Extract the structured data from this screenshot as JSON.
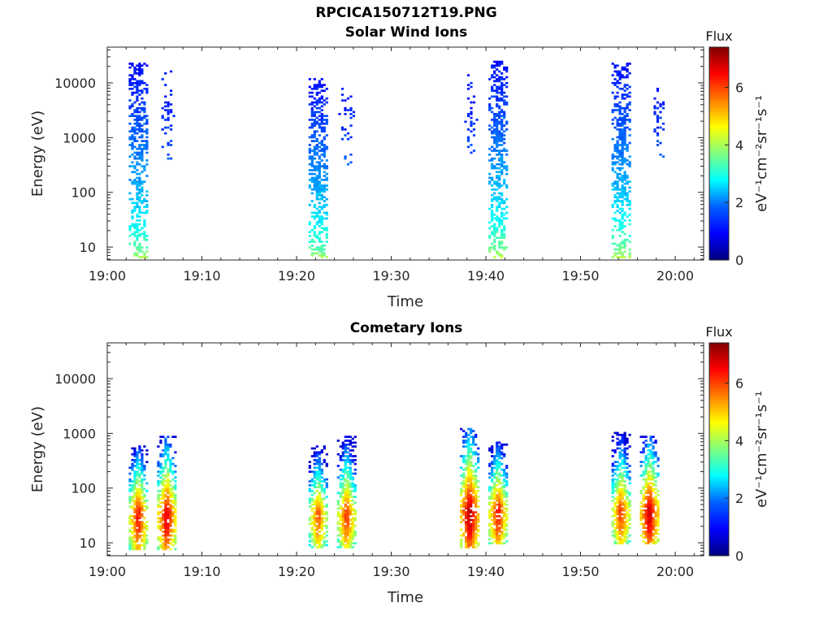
{
  "figure": {
    "title": "RPCICA150712T19.PNG"
  },
  "chart_data": [
    {
      "type": "heatmap",
      "title": "Solar Wind Ions",
      "xlabel": "Time",
      "ylabel": "Energy (eV)",
      "x_ticks": [
        "19:00",
        "19:10",
        "19:20",
        "19:30",
        "19:40",
        "19:50",
        "20:00"
      ],
      "x_range": [
        "19:00",
        "20:03"
      ],
      "y_scale": "log",
      "y_ticks": [
        10,
        100,
        1000,
        10000
      ],
      "y_range": [
        5.8,
        45000
      ],
      "colorbar": {
        "title": "Flux",
        "label": "eV⁻¹cm⁻²sr⁻¹s⁻¹",
        "ticks": [
          0,
          2,
          4,
          6
        ],
        "range": [
          0,
          7.4
        ],
        "colormap": "jet"
      },
      "bursts": [
        {
          "time": "19:03",
          "e_low": 6,
          "e_high": 22000,
          "flux_low_energy": 4.3,
          "flux_high_energy": 1.0
        },
        {
          "time": "19:06",
          "e_low": 300,
          "e_high": 16000,
          "flux_low_energy": 1.8,
          "flux_high_energy": 1.0
        },
        {
          "time": "19:22",
          "e_low": 6,
          "e_high": 12000,
          "flux_low_energy": 4.3,
          "flux_high_energy": 1.0
        },
        {
          "time": "19:25",
          "e_low": 300,
          "e_high": 10000,
          "flux_low_energy": 1.8,
          "flux_high_energy": 1.0
        },
        {
          "time": "19:38",
          "e_low": 300,
          "e_high": 15000,
          "flux_low_energy": 1.8,
          "flux_high_energy": 1.0
        },
        {
          "time": "19:41",
          "e_low": 6,
          "e_high": 25000,
          "flux_low_energy": 4.5,
          "flux_high_energy": 1.0
        },
        {
          "time": "19:54",
          "e_low": 6,
          "e_high": 23000,
          "flux_low_energy": 4.5,
          "flux_high_energy": 1.0
        },
        {
          "time": "19:58",
          "e_low": 400,
          "e_high": 10000,
          "flux_low_energy": 1.8,
          "flux_high_energy": 1.0
        }
      ]
    },
    {
      "type": "heatmap",
      "title": "Cometary Ions",
      "xlabel": "Time",
      "ylabel": "Energy (eV)",
      "x_ticks": [
        "19:00",
        "19:10",
        "19:20",
        "19:30",
        "19:40",
        "19:50",
        "20:00"
      ],
      "x_range": [
        "19:00",
        "20:03"
      ],
      "y_scale": "log",
      "y_ticks": [
        10,
        100,
        1000,
        10000
      ],
      "y_range": [
        5.8,
        45000
      ],
      "colorbar": {
        "title": "Flux",
        "label": "eV⁻¹cm⁻²sr⁻¹s⁻¹",
        "ticks": [
          0,
          2,
          4,
          6
        ],
        "range": [
          0,
          7.4
        ],
        "colormap": "jet"
      },
      "bursts": [
        {
          "time": "19:03",
          "e_low": 7,
          "e_high": 600,
          "flux_peak": 6.5,
          "peak_energy": 35
        },
        {
          "time": "19:06",
          "e_low": 7,
          "e_high": 900,
          "flux_peak": 6.8,
          "peak_energy": 35
        },
        {
          "time": "19:22",
          "e_low": 8,
          "e_high": 600,
          "flux_peak": 6.0,
          "peak_energy": 35
        },
        {
          "time": "19:25",
          "e_low": 8,
          "e_high": 850,
          "flux_peak": 6.2,
          "peak_energy": 35
        },
        {
          "time": "19:38",
          "e_low": 8,
          "e_high": 1200,
          "flux_peak": 7.2,
          "peak_energy": 40
        },
        {
          "time": "19:41",
          "e_low": 9,
          "e_high": 700,
          "flux_peak": 6.5,
          "peak_energy": 40
        },
        {
          "time": "19:54",
          "e_low": 9,
          "e_high": 1000,
          "flux_peak": 6.2,
          "peak_energy": 40
        },
        {
          "time": "19:57",
          "e_low": 9,
          "e_high": 900,
          "flux_peak": 7.0,
          "peak_energy": 40
        }
      ]
    }
  ]
}
